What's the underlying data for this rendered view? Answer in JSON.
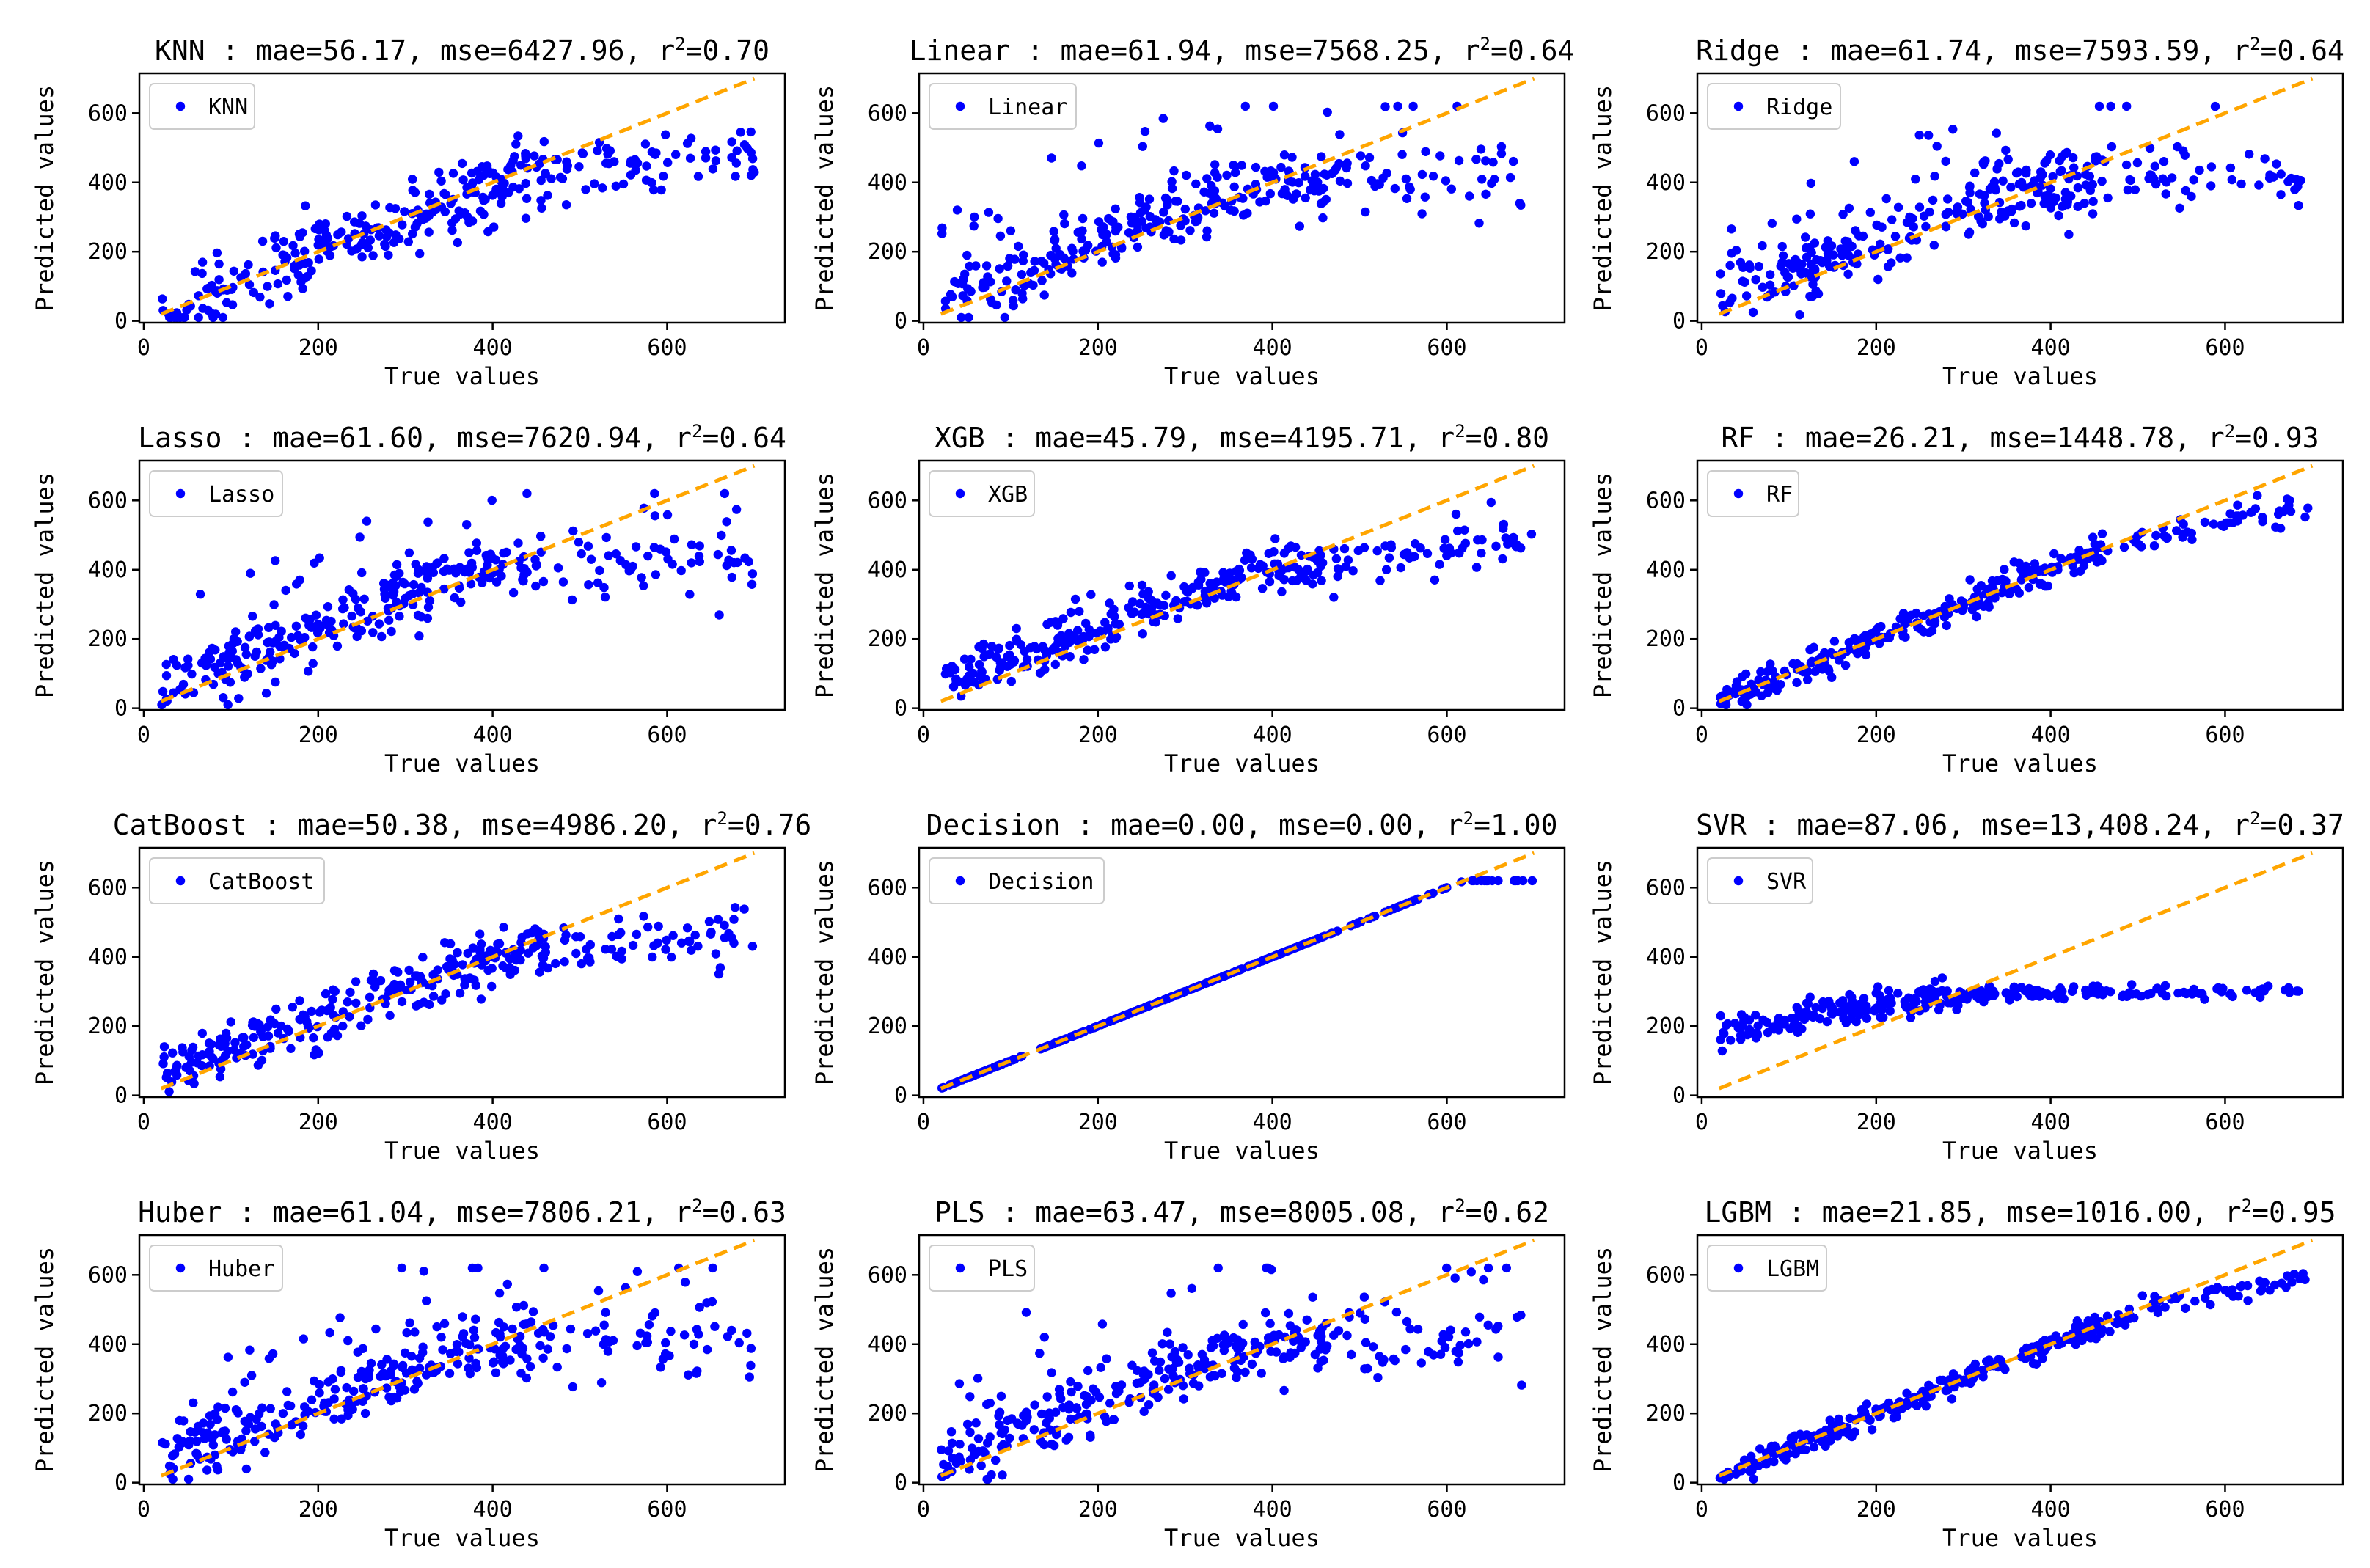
{
  "figure": {
    "xlabel": "True values",
    "ylabel": "Predicted values",
    "x_ticks": [
      0,
      200,
      400,
      600
    ],
    "y_ticks": [
      0,
      200,
      400,
      600
    ],
    "xlim": [
      -5,
      735
    ],
    "ylim": [
      -5,
      715
    ],
    "marker_color": "#0000ff",
    "line_color": "#ffa500",
    "frame_color": "#000000"
  },
  "chart_data": [
    {
      "type": "scatter",
      "model": "KNN",
      "legend": "KNN",
      "title": "KNN : mae=56.17, mse=6427.96, r²=0.70",
      "title_main": "KNN : mae=56.17, mse=6427.96, ",
      "title_r2_label": "r",
      "title_r2_sup": "2",
      "title_r2_value": "=0.70",
      "mae": 56.17,
      "mse": 6427.96,
      "r2": 0.7,
      "n_points": 320,
      "xlim": [
        -5,
        735
      ],
      "ylim": [
        -5,
        715
      ]
    },
    {
      "type": "scatter",
      "model": "Linear",
      "legend": "Linear",
      "title": "Linear : mae=61.94, mse=7568.25, r²=0.64",
      "title_main": "Linear : mae=61.94, mse=7568.25, ",
      "title_r2_label": "r",
      "title_r2_sup": "2",
      "title_r2_value": "=0.64",
      "mae": 61.94,
      "mse": 7568.25,
      "r2": 0.64,
      "n_points": 320,
      "xlim": [
        -5,
        735
      ],
      "ylim": [
        -5,
        715
      ]
    },
    {
      "type": "scatter",
      "model": "Ridge",
      "legend": "Ridge",
      "title": "Ridge : mae=61.74, mse=7593.59, r²=0.64",
      "title_main": "Ridge : mae=61.74, mse=7593.59, ",
      "title_r2_label": "r",
      "title_r2_sup": "2",
      "title_r2_value": "=0.64",
      "mae": 61.74,
      "mse": 7593.59,
      "r2": 0.64,
      "n_points": 320,
      "xlim": [
        -5,
        735
      ],
      "ylim": [
        -5,
        715
      ]
    },
    {
      "type": "scatter",
      "model": "Lasso",
      "legend": "Lasso",
      "title": "Lasso : mae=61.60, mse=7620.94, r²=0.64",
      "title_main": "Lasso : mae=61.60, mse=7620.94, ",
      "title_r2_label": "r",
      "title_r2_sup": "2",
      "title_r2_value": "=0.64",
      "mae": 61.6,
      "mse": 7620.94,
      "r2": 0.64,
      "n_points": 320,
      "xlim": [
        -5,
        735
      ],
      "ylim": [
        -5,
        715
      ]
    },
    {
      "type": "scatter",
      "model": "XGB",
      "legend": "XGB",
      "title": "XGB : mae=45.79, mse=4195.71, r²=0.80",
      "title_main": "XGB : mae=45.79, mse=4195.71, ",
      "title_r2_label": "r",
      "title_r2_sup": "2",
      "title_r2_value": "=0.80",
      "mae": 45.79,
      "mse": 4195.71,
      "r2": 0.8,
      "n_points": 320,
      "xlim": [
        -5,
        735
      ],
      "ylim": [
        -5,
        715
      ]
    },
    {
      "type": "scatter",
      "model": "RF",
      "legend": "RF",
      "title": "RF : mae=26.21, mse=1448.78, r²=0.93",
      "title_main": "RF : mae=26.21, mse=1448.78, ",
      "title_r2_label": "r",
      "title_r2_sup": "2",
      "title_r2_value": "=0.93",
      "mae": 26.21,
      "mse": 1448.78,
      "r2": 0.93,
      "n_points": 320,
      "xlim": [
        -5,
        735
      ],
      "ylim": [
        -5,
        715
      ]
    },
    {
      "type": "scatter",
      "model": "CatBoost",
      "legend": "CatBoost",
      "title": "CatBoost : mae=50.38, mse=4986.20, r²=0.76",
      "title_main": "CatBoost : mae=50.38, mse=4986.20, ",
      "title_r2_label": "r",
      "title_r2_sup": "2",
      "title_r2_value": "=0.76",
      "mae": 50.38,
      "mse": 4986.2,
      "r2": 0.76,
      "n_points": 320,
      "xlim": [
        -5,
        735
      ],
      "ylim": [
        -5,
        715
      ]
    },
    {
      "type": "scatter",
      "model": "Decision",
      "legend": "Decision",
      "title": "Decision : mae=0.00, mse=0.00, r²=1.00",
      "title_main": "Decision : mae=0.00, mse=0.00, ",
      "title_r2_label": "r",
      "title_r2_sup": "2",
      "title_r2_value": "=1.00",
      "mae": 0.0,
      "mse": 0.0,
      "r2": 1.0,
      "n_points": 320,
      "xlim": [
        -5,
        735
      ],
      "ylim": [
        -5,
        715
      ]
    },
    {
      "type": "scatter",
      "model": "SVR",
      "legend": "SVR",
      "title": "SVR : mae=87.06, mse=13,408.24, r²=0.37",
      "title_main": "SVR : mae=87.06, mse=13,408.24, ",
      "title_r2_label": "r",
      "title_r2_sup": "2",
      "title_r2_value": "=0.37",
      "mae": 87.06,
      "mse": 13408.24,
      "r2": 0.37,
      "n_points": 320,
      "xlim": [
        -5,
        735
      ],
      "ylim": [
        -5,
        715
      ]
    },
    {
      "type": "scatter",
      "model": "Huber",
      "legend": "Huber",
      "title": "Huber : mae=61.04, mse=7806.21, r²=0.63",
      "title_main": "Huber : mae=61.04, mse=7806.21, ",
      "title_r2_label": "r",
      "title_r2_sup": "2",
      "title_r2_value": "=0.63",
      "mae": 61.04,
      "mse": 7806.21,
      "r2": 0.63,
      "n_points": 320,
      "xlim": [
        -5,
        735
      ],
      "ylim": [
        -5,
        715
      ]
    },
    {
      "type": "scatter",
      "model": "PLS",
      "legend": "PLS",
      "title": "PLS : mae=63.47, mse=8005.08, r²=0.62",
      "title_main": "PLS : mae=63.47, mse=8005.08, ",
      "title_r2_label": "r",
      "title_r2_sup": "2",
      "title_r2_value": "=0.62",
      "mae": 63.47,
      "mse": 8005.08,
      "r2": 0.62,
      "n_points": 320,
      "xlim": [
        -5,
        735
      ],
      "ylim": [
        -5,
        715
      ]
    },
    {
      "type": "scatter",
      "model": "LGBM",
      "legend": "LGBM",
      "title": "LGBM : mae=21.85, mse=1016.00, r²=0.95",
      "title_main": "LGBM : mae=21.85, mse=1016.00, ",
      "title_r2_label": "r",
      "title_r2_sup": "2",
      "title_r2_value": "=0.95",
      "mae": 21.85,
      "mse": 1016.0,
      "r2": 0.95,
      "n_points": 320,
      "xlim": [
        -5,
        735
      ],
      "ylim": [
        -5,
        715
      ]
    }
  ]
}
